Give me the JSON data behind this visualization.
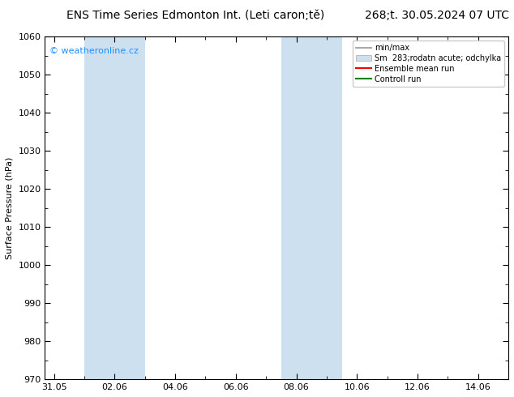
{
  "title_left": "ENS Time Series Edmonton Int. (Leti caron;tě)",
  "title_right": "268;t. 30.05.2024 07 UTC",
  "ylabel": "Surface Pressure (hPa)",
  "ylim": [
    970,
    1060
  ],
  "yticks": [
    970,
    980,
    990,
    1000,
    1010,
    1020,
    1030,
    1040,
    1050,
    1060
  ],
  "xtick_labels": [
    "31.05",
    "02.06",
    "04.06",
    "06.06",
    "08.06",
    "10.06",
    "12.06",
    "14.06"
  ],
  "xtick_positions": [
    0,
    2,
    4,
    6,
    8,
    10,
    12,
    14
  ],
  "xlim": [
    -0.3,
    15.0
  ],
  "shaded_bands": [
    {
      "x_start": 1.0,
      "x_end": 3.0
    },
    {
      "x_start": 7.5,
      "x_end": 9.5
    }
  ],
  "shaded_color": "#cce0f0",
  "watermark_text": "© weatheronline.cz",
  "watermark_color": "#1e90ff",
  "legend_items": [
    {
      "label": "min/max",
      "color": "#aaaaaa",
      "lw": 1.5,
      "patch": false
    },
    {
      "label": "Sm  283;rodatn acute; odchylka",
      "color": "#cce0f0",
      "lw": 8,
      "patch": true
    },
    {
      "label": "Ensemble mean run",
      "color": "red",
      "lw": 1.5,
      "patch": false
    },
    {
      "label": "Controll run",
      "color": "green",
      "lw": 1.5,
      "patch": false
    }
  ],
  "bg_color": "#ffffff",
  "plot_bg_color": "#ffffff",
  "title_fontsize": 10,
  "axis_fontsize": 8,
  "tick_fontsize": 8,
  "legend_fontsize": 7,
  "watermark_fontsize": 8
}
